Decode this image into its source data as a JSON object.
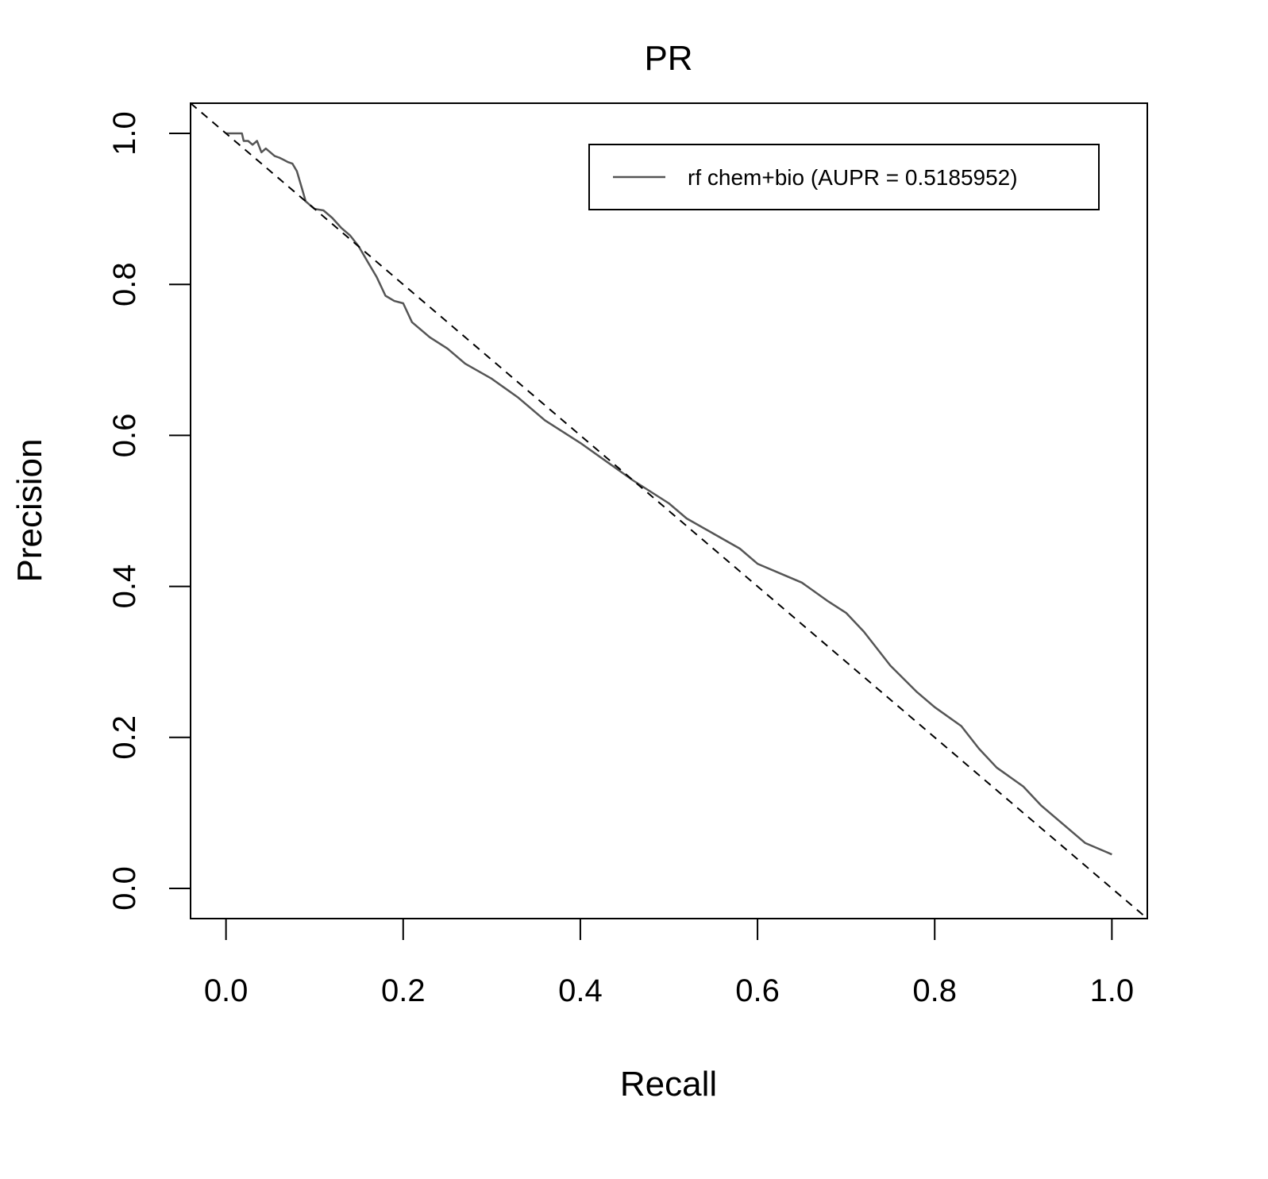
{
  "chart_data": {
    "type": "line",
    "title": "PR",
    "xlabel": "Recall",
    "ylabel": "Precision",
    "xlim": [
      -0.04,
      1.04
    ],
    "ylim": [
      -0.04,
      1.04
    ],
    "x_ticks": [
      0.0,
      0.2,
      0.4,
      0.6,
      0.8,
      1.0
    ],
    "x_tick_labels": [
      "0.0",
      "0.2",
      "0.4",
      "0.6",
      "0.8",
      "1.0"
    ],
    "y_ticks": [
      0.0,
      0.2,
      0.4,
      0.6,
      0.8,
      1.0
    ],
    "y_tick_labels": [
      "0.0",
      "0.2",
      "0.4",
      "0.6",
      "0.8",
      "1.0"
    ],
    "grid": false,
    "legend_position": "top-right",
    "series": [
      {
        "name": "rf chem+bio (AUPR = 0.5185952)",
        "color": "#555555",
        "line_style": "solid",
        "x": [
          0.0,
          0.018,
          0.02,
          0.025,
          0.03,
          0.035,
          0.04,
          0.045,
          0.05,
          0.055,
          0.06,
          0.065,
          0.07,
          0.075,
          0.08,
          0.085,
          0.09,
          0.095,
          0.1,
          0.11,
          0.12,
          0.13,
          0.14,
          0.15,
          0.16,
          0.17,
          0.18,
          0.19,
          0.2,
          0.21,
          0.22,
          0.23,
          0.25,
          0.27,
          0.3,
          0.33,
          0.36,
          0.4,
          0.43,
          0.46,
          0.5,
          0.52,
          0.55,
          0.58,
          0.6,
          0.63,
          0.65,
          0.68,
          0.7,
          0.72,
          0.75,
          0.78,
          0.8,
          0.83,
          0.85,
          0.87,
          0.9,
          0.92,
          0.95,
          0.97,
          0.99,
          1.0
        ],
        "values": [
          1.0,
          1.0,
          0.99,
          0.99,
          0.985,
          0.99,
          0.975,
          0.98,
          0.975,
          0.97,
          0.968,
          0.965,
          0.962,
          0.96,
          0.95,
          0.93,
          0.91,
          0.905,
          0.9,
          0.898,
          0.888,
          0.875,
          0.865,
          0.85,
          0.83,
          0.81,
          0.785,
          0.778,
          0.775,
          0.75,
          0.74,
          0.73,
          0.715,
          0.695,
          0.675,
          0.65,
          0.62,
          0.59,
          0.565,
          0.54,
          0.51,
          0.49,
          0.47,
          0.45,
          0.43,
          0.415,
          0.405,
          0.38,
          0.365,
          0.34,
          0.295,
          0.26,
          0.24,
          0.215,
          0.185,
          0.16,
          0.135,
          0.11,
          0.08,
          0.06,
          0.05,
          0.045
        ]
      },
      {
        "color": "#000000",
        "line_style": "dashed",
        "x": [
          -0.04,
          1.04
        ],
        "values": [
          1.04,
          -0.04
        ]
      }
    ]
  }
}
